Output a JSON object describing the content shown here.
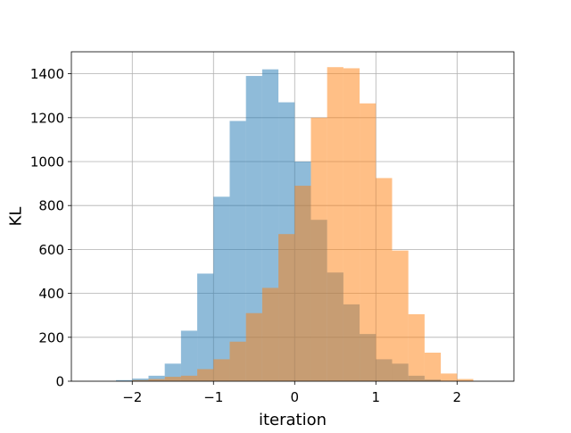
{
  "chart_data": {
    "type": "bar",
    "title": "",
    "xlabel": "iteration",
    "ylabel": "KL",
    "xlim": [
      -2.75,
      2.7
    ],
    "ylim": [
      0,
      1500
    ],
    "grid": true,
    "x_ticks": [
      -2,
      -1,
      0,
      1,
      2
    ],
    "x_tick_labels": [
      "−2",
      "−1",
      "0",
      "1",
      "2"
    ],
    "y_ticks": [
      0,
      200,
      400,
      600,
      800,
      1000,
      1200,
      1400
    ],
    "y_tick_labels": [
      "0",
      "200",
      "400",
      "600",
      "800",
      "1000",
      "1200",
      "1400"
    ],
    "series": [
      {
        "color": "#1f77b4",
        "opacity": 0.5,
        "bins": [
          {
            "x0": -2.2,
            "x1": -2.0,
            "value": 5
          },
          {
            "x0": -2.0,
            "x1": -1.8,
            "value": 12
          },
          {
            "x0": -1.8,
            "x1": -1.6,
            "value": 25
          },
          {
            "x0": -1.6,
            "x1": -1.4,
            "value": 80
          },
          {
            "x0": -1.4,
            "x1": -1.2,
            "value": 230
          },
          {
            "x0": -1.2,
            "x1": -1.0,
            "value": 490
          },
          {
            "x0": -1.0,
            "x1": -0.8,
            "value": 840
          },
          {
            "x0": -0.8,
            "x1": -0.6,
            "value": 1185
          },
          {
            "x0": -0.6,
            "x1": -0.4,
            "value": 1390
          },
          {
            "x0": -0.4,
            "x1": -0.2,
            "value": 1420
          },
          {
            "x0": -0.2,
            "x1": 0.0,
            "value": 1270
          },
          {
            "x0": 0.0,
            "x1": 0.2,
            "value": 1000
          },
          {
            "x0": 0.2,
            "x1": 0.4,
            "value": 735
          },
          {
            "x0": 0.4,
            "x1": 0.6,
            "value": 495
          },
          {
            "x0": 0.6,
            "x1": 0.8,
            "value": 350
          },
          {
            "x0": 0.8,
            "x1": 1.0,
            "value": 215
          },
          {
            "x0": 1.0,
            "x1": 1.2,
            "value": 100
          },
          {
            "x0": 1.2,
            "x1": 1.4,
            "value": 80
          },
          {
            "x0": 1.4,
            "x1": 1.6,
            "value": 25
          },
          {
            "x0": 1.6,
            "x1": 1.8,
            "value": 8
          }
        ]
      },
      {
        "color": "#ff7f0e",
        "opacity": 0.5,
        "bins": [
          {
            "x0": -2.0,
            "x1": -1.8,
            "value": 5
          },
          {
            "x0": -1.8,
            "x1": -1.6,
            "value": 10
          },
          {
            "x0": -1.6,
            "x1": -1.4,
            "value": 20
          },
          {
            "x0": -1.4,
            "x1": -1.2,
            "value": 25
          },
          {
            "x0": -1.2,
            "x1": -1.0,
            "value": 55
          },
          {
            "x0": -1.0,
            "x1": -0.8,
            "value": 100
          },
          {
            "x0": -0.8,
            "x1": -0.6,
            "value": 180
          },
          {
            "x0": -0.6,
            "x1": -0.4,
            "value": 310
          },
          {
            "x0": -0.4,
            "x1": -0.2,
            "value": 425
          },
          {
            "x0": -0.2,
            "x1": 0.0,
            "value": 670
          },
          {
            "x0": 0.0,
            "x1": 0.2,
            "value": 890
          },
          {
            "x0": 0.2,
            "x1": 0.4,
            "value": 1200
          },
          {
            "x0": 0.4,
            "x1": 0.6,
            "value": 1430
          },
          {
            "x0": 0.6,
            "x1": 0.8,
            "value": 1425
          },
          {
            "x0": 0.8,
            "x1": 1.0,
            "value": 1265
          },
          {
            "x0": 1.0,
            "x1": 1.2,
            "value": 925
          },
          {
            "x0": 1.2,
            "x1": 1.4,
            "value": 595
          },
          {
            "x0": 1.4,
            "x1": 1.6,
            "value": 305
          },
          {
            "x0": 1.6,
            "x1": 1.8,
            "value": 130
          },
          {
            "x0": 1.8,
            "x1": 2.0,
            "value": 35
          },
          {
            "x0": 2.0,
            "x1": 2.2,
            "value": 10
          }
        ]
      }
    ]
  }
}
